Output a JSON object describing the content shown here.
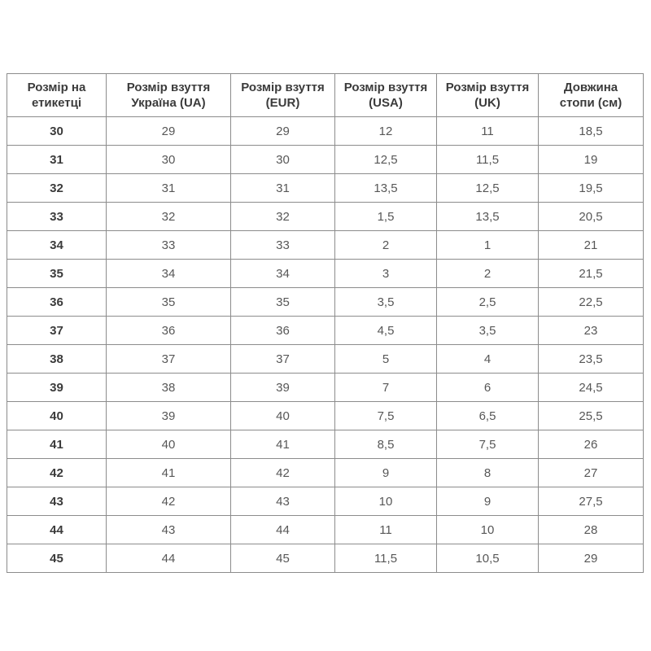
{
  "page": {
    "background_color": "#ffffff"
  },
  "table": {
    "columns": [
      "Розмір на етикетці",
      "Розмір взуття Україна (UA)",
      "Розмір взуття (EUR)",
      "Розмір взуття (USA)",
      "Розмір взуття (UK)",
      "Довжина стопи (см)"
    ],
    "rows": [
      [
        "30",
        "29",
        "29",
        "12",
        "11",
        "18,5"
      ],
      [
        "31",
        "30",
        "30",
        "12,5",
        "11,5",
        "19"
      ],
      [
        "32",
        "31",
        "31",
        "13,5",
        "12,5",
        "19,5"
      ],
      [
        "33",
        "32",
        "32",
        "1,5",
        "13,5",
        "20,5"
      ],
      [
        "34",
        "33",
        "33",
        "2",
        "1",
        "21"
      ],
      [
        "35",
        "34",
        "34",
        "3",
        "2",
        "21,5"
      ],
      [
        "36",
        "35",
        "35",
        "3,5",
        "2,5",
        "22,5"
      ],
      [
        "37",
        "36",
        "36",
        "4,5",
        "3,5",
        "23"
      ],
      [
        "38",
        "37",
        "37",
        "5",
        "4",
        "23,5"
      ],
      [
        "39",
        "38",
        "39",
        "7",
        "6",
        "24,5"
      ],
      [
        "40",
        "39",
        "40",
        "7,5",
        "6,5",
        "25,5"
      ],
      [
        "41",
        "40",
        "41",
        "8,5",
        "7,5",
        "26"
      ],
      [
        "42",
        "41",
        "42",
        "9",
        "8",
        "27"
      ],
      [
        "43",
        "42",
        "43",
        "10",
        "9",
        "27,5"
      ],
      [
        "44",
        "43",
        "44",
        "11",
        "10",
        "28"
      ],
      [
        "45",
        "44",
        "45",
        "11,5",
        "10,5",
        "29"
      ]
    ],
    "colors": {
      "border": "#8c8c8c",
      "header_text": "#3b3b3b",
      "cell_text": "#575757",
      "row_background": "#ffffff"
    }
  }
}
